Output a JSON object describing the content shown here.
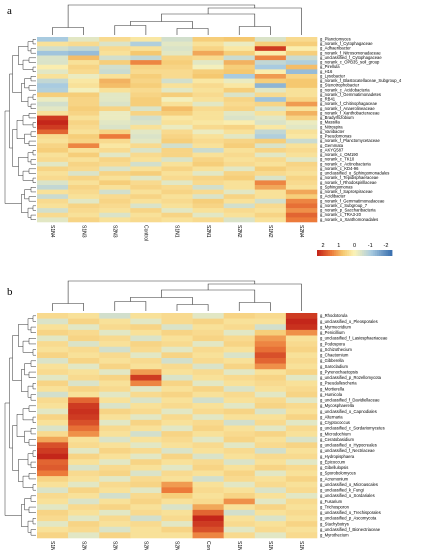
{
  "chart_data": [
    {
      "type": "heatmap",
      "panel_label": "a",
      "columns": [
        "S1N4",
        "S1N3",
        "S2N3",
        "Control",
        "S1N1",
        "S2N1",
        "S2N2",
        "S1N2",
        "S2N4"
      ],
      "rows": [
        "g_Planctomyces",
        "g_norank_f_Cytophagaceae",
        "g_Adhaeribacter",
        "g_norank_f_Nitrosomonadaceae",
        "g_unclassified_f_Cytophagaceae",
        "g_norank_c_OPB35_soil_group",
        "g_Pirellula",
        "g_H16",
        "g_Lysobacter",
        "g_norank_f_Blastocatellaceae_Subgroup_4",
        "g_Stenotrophobacter",
        "g_norank_c_Acidobacteria",
        "g_norank_f_Gemmatimonadetes",
        "g_RB41",
        "g_norank_f_Chitinophagaceae",
        "g_norank_f_Anaerolineaceae",
        "g_norank_f_Xanthobacteraceae",
        "g_Bradyrhizobium",
        "g_Massilia",
        "g_Nitrospira",
        "g_Variibacter",
        "g_Pseudomonas",
        "g_norank_f_Planctomycetaceae",
        "g_Gemmata",
        "g_AKYG587",
        "g_norank_c_OM190",
        "g_norank_c_TK10",
        "g_norank_c_Actinobacteria",
        "g_norank_c_KD4-96",
        "g_unclassified_o_Sphingomonadales",
        "g_norank_f_Tepidisphaeraceae",
        "g_norank_f_Rhodospirillaceae",
        "g_Sphingomonas",
        "g_norank_f_Saprospiraceae",
        "g_Acidibacter",
        "g_norank_f_Gemmatimonadaceae",
        "g_norank_c_Subgroup_7",
        "g_norank_p_Saccharibacteria",
        "g_norank_c_TRA3-20",
        "g_norank_o_Xanthomonadales"
      ],
      "values": [
        [
          -1.0,
          -0.3,
          0.4,
          0.2,
          -0.5,
          0.6,
          0.7,
          -0.4,
          0.4
        ],
        [
          0.3,
          0.4,
          -0.4,
          -0.9,
          -0.3,
          0.3,
          -0.2,
          0.6,
          0.6
        ],
        [
          -0.5,
          -0.7,
          0.4,
          0.3,
          -0.4,
          0.5,
          0.2,
          2.0,
          0.1
        ],
        [
          -1.1,
          -1.2,
          0.3,
          0.7,
          -0.3,
          1.0,
          0.6,
          0.1,
          0.6
        ],
        [
          -0.4,
          0.8,
          -0.5,
          -0.7,
          0.5,
          0.4,
          -0.6,
          1.3,
          -0.6
        ],
        [
          -0.4,
          0.3,
          0.6,
          1.3,
          0.6,
          -0.3,
          0.9,
          -0.7,
          -0.9
        ],
        [
          0.1,
          0.5,
          -0.5,
          0.5,
          0.5,
          -0.1,
          0.6,
          -1.0,
          0.8
        ],
        [
          -0.3,
          0.4,
          -0.6,
          0.4,
          0.4,
          0.6,
          0.7,
          0.1,
          -1.2
        ],
        [
          0.3,
          -0.2,
          0.3,
          0.6,
          0.4,
          0.7,
          -1.0,
          1.1,
          0.5
        ],
        [
          -0.7,
          0.2,
          0.9,
          0.5,
          -0.5,
          0.2,
          -0.2,
          0.6,
          0.7
        ],
        [
          -1.0,
          0.3,
          0.8,
          0.6,
          0.3,
          0.4,
          0.2,
          -1.3,
          0.7
        ],
        [
          -0.9,
          -0.1,
          0.3,
          0.4,
          -0.3,
          0.3,
          0.6,
          -0.3,
          0.3
        ],
        [
          0.6,
          0.6,
          -0.3,
          0.5,
          0.6,
          0.4,
          -0.4,
          0.4,
          0.3
        ],
        [
          -0.2,
          0.5,
          -0.3,
          0.6,
          -0.1,
          0.3,
          0.5,
          -1.1,
          0.5
        ],
        [
          -0.5,
          0.5,
          -0.4,
          0.6,
          0.3,
          -0.3,
          0.4,
          0.5,
          1.1
        ],
        [
          -0.3,
          0.6,
          0.5,
          -0.4,
          0.8,
          0.4,
          0.5,
          -0.4,
          0.3
        ],
        [
          0.3,
          0.5,
          -0.2,
          0.5,
          0.6,
          0.3,
          -0.3,
          0.3,
          0.9
        ],
        [
          2.0,
          0.3,
          -0.2,
          -0.5,
          0.2,
          0.3,
          -0.4,
          -0.3,
          0.5
        ],
        [
          2.2,
          0.5,
          -0.3,
          -0.4,
          0.3,
          0.2,
          0.1,
          -0.4,
          -0.2
        ],
        [
          2.0,
          0.4,
          -0.4,
          0.3,
          -0.2,
          0.4,
          0.5,
          0.2,
          -0.3
        ],
        [
          1.6,
          0.3,
          0.5,
          -0.3,
          0.4,
          -0.2,
          0.3,
          -0.7,
          0.3
        ],
        [
          0.4,
          0.6,
          1.4,
          -0.4,
          0.5,
          0.3,
          -0.3,
          -0.9,
          0.2
        ],
        [
          0.3,
          0.5,
          0.4,
          -0.3,
          0.6,
          0.4,
          0.5,
          0.6,
          -0.6
        ],
        [
          0.5,
          1.3,
          0.2,
          0.4,
          -0.5,
          0.3,
          0.6,
          -0.4,
          0.3
        ],
        [
          0.6,
          0.3,
          0.4,
          -0.4,
          0.5,
          -0.6,
          0.3,
          0.5,
          0.4
        ],
        [
          0.3,
          0.6,
          -0.3,
          0.4,
          0.5,
          0.3,
          0.4,
          -0.3,
          0.3
        ],
        [
          0.4,
          0.3,
          0.5,
          0.3,
          -0.4,
          0.5,
          0.3,
          0.4,
          -0.3
        ],
        [
          -0.3,
          0.5,
          0.4,
          -0.5,
          0.3,
          0.6,
          0.4,
          0.3,
          0.5
        ],
        [
          0.5,
          0.4,
          -0.4,
          0.3,
          0.5,
          0.3,
          -0.3,
          0.6,
          0.4
        ],
        [
          0.3,
          -0.4,
          0.5,
          0.6,
          0.3,
          -0.3,
          0.5,
          0.4,
          0.3
        ],
        [
          0.4,
          0.5,
          0.3,
          -0.3,
          0.4,
          0.5,
          0.6,
          -0.4,
          0.5
        ],
        [
          -0.4,
          0.3,
          0.6,
          0.4,
          -0.3,
          0.4,
          0.3,
          1.3,
          0.4
        ],
        [
          -0.7,
          0.5,
          0.3,
          0.5,
          0.4,
          -0.5,
          0.3,
          1.0,
          0.3
        ],
        [
          0.3,
          0.4,
          -0.5,
          0.3,
          0.5,
          0.4,
          -0.3,
          0.3,
          1.0
        ],
        [
          -0.6,
          0.3,
          0.4,
          0.5,
          0.3,
          -0.4,
          0.5,
          0.3,
          0.6
        ],
        [
          0.4,
          -0.3,
          0.5,
          0.3,
          0.4,
          0.6,
          0.3,
          -0.5,
          1.3
        ],
        [
          0.3,
          0.5,
          0.4,
          -0.4,
          0.3,
          0.5,
          -0.5,
          0.4,
          1.5
        ],
        [
          -0.5,
          0.4,
          0.3,
          0.5,
          -0.3,
          0.3,
          0.4,
          0.3,
          1.2
        ],
        [
          0.4,
          0.3,
          -0.4,
          0.3,
          0.5,
          -0.3,
          0.3,
          0.5,
          1.6
        ],
        [
          -0.3,
          0.5,
          0.3,
          0.4,
          0.3,
          0.4,
          -0.4,
          0.3,
          1.4
        ]
      ],
      "legend": {
        "ticks": [
          2,
          1,
          0,
          -1,
          -2
        ],
        "colors": [
          "#c8401c",
          "#f0a050",
          "#fbf3b0",
          "#b0cfe0",
          "#4a7fb7"
        ]
      }
    },
    {
      "type": "heatmap",
      "panel_label": "b",
      "columns": [
        "S1N3",
        "S2N4",
        "S2N3",
        "S2N2",
        "S2N1",
        "Control",
        "S1N1",
        "S1N2",
        "S1N4"
      ],
      "rows": [
        "g_Rhodotorula",
        "g_unclassified_o_Pleosporales",
        "g_Myrmecridium",
        "g_Penicillium",
        "g_unclassified_f_Lasiosphaeriaceae",
        "g_Podospora",
        "g_Schizothecium",
        "g_Chaetomium",
        "g_Gibberella",
        "g_Sarocladium",
        "g_Pyrenochaetopsis",
        "g_unclassified_p_Rozellomycota",
        "g_Pseudallescheria",
        "g_Mortierella",
        "g_Humicola",
        "g_unclassified_f_Davidiellaceae",
        "g_Mycosphaerella",
        "g_unclassified_o_Capnodiales",
        "g_Alternaria",
        "g_Cryptococcus",
        "g_unclassified_c_Sordariomycetes",
        "g_Microdochium",
        "g_Ceratobasidium",
        "g_unclassified_o_Hypocreales",
        "g_unclassified_f_Nectriaceae",
        "g_Hydropisphaera",
        "g_Epicoccum",
        "g_Gibellulopsis",
        "g_Sporobolomyces",
        "g_Acremonium",
        "g_unclassified_o_Microascales",
        "g_unclassified_k_Fungi",
        "g_unclassified_o_Sordariales",
        "g_Fusarium",
        "g_Trichosporon",
        "g_unclassified_o_Trechisporales",
        "g_unclassified_p_Ascomycota",
        "g_Stachybotrys",
        "g_unclassified_f_Bionectriaceae",
        "g_Myrothecium"
      ],
      "values": [
        [
          0.4,
          0.3,
          -0.5,
          0.3,
          0.4,
          -0.3,
          0.5,
          0.4,
          2.0
        ],
        [
          -0.4,
          0.5,
          0.3,
          -0.3,
          0.4,
          0.5,
          0.3,
          0.3,
          2.2
        ],
        [
          0.3,
          -0.3,
          0.4,
          0.5,
          -0.4,
          0.3,
          0.4,
          -0.5,
          2.1
        ],
        [
          0.5,
          0.4,
          -0.3,
          0.3,
          0.5,
          0.4,
          -0.3,
          0.6,
          1.2
        ],
        [
          -0.3,
          0.5,
          0.4,
          -0.4,
          0.3,
          0.5,
          0.4,
          1.1,
          0.3
        ],
        [
          0.4,
          -0.4,
          0.3,
          0.5,
          0.4,
          -0.3,
          0.5,
          1.3,
          0.4
        ],
        [
          0.3,
          0.4,
          -0.5,
          0.4,
          -0.3,
          0.4,
          0.3,
          1.5,
          0.5
        ],
        [
          0.5,
          0.3,
          0.4,
          -0.3,
          0.5,
          0.3,
          -0.4,
          1.8,
          0.3
        ],
        [
          -0.4,
          0.5,
          0.3,
          0.4,
          -0.5,
          0.4,
          0.3,
          1.6,
          0.4
        ],
        [
          0.3,
          -0.3,
          0.5,
          0.3,
          0.4,
          -0.4,
          0.5,
          1.2,
          0.3
        ],
        [
          0.4,
          0.3,
          -0.3,
          1.1,
          0.3,
          0.4,
          -0.3,
          0.3,
          0.5
        ],
        [
          -0.3,
          0.4,
          0.5,
          2.0,
          -0.4,
          0.3,
          0.4,
          0.5,
          -0.3
        ],
        [
          0.5,
          -0.4,
          0.3,
          1.3,
          0.5,
          -0.3,
          0.3,
          0.4,
          0.3
        ],
        [
          0.3,
          0.5,
          0.4,
          -0.3,
          0.3,
          0.5,
          -0.4,
          0.3,
          0.4
        ],
        [
          -0.5,
          0.3,
          -0.3,
          0.4,
          0.5,
          0.3,
          0.4,
          -0.3,
          0.5
        ],
        [
          0.4,
          1.6,
          0.3,
          -0.4,
          0.3,
          -0.5,
          0.3,
          0.4,
          -0.3
        ],
        [
          0.3,
          2.0,
          -0.4,
          0.3,
          0.4,
          0.3,
          -0.3,
          0.5,
          0.4
        ],
        [
          -0.3,
          2.1,
          0.5,
          0.4,
          -0.3,
          0.4,
          0.5,
          -0.4,
          0.3
        ],
        [
          0.5,
          2.0,
          0.3,
          -0.3,
          0.4,
          -0.3,
          0.3,
          0.3,
          0.5
        ],
        [
          0.3,
          1.8,
          -0.3,
          0.5,
          0.3,
          0.4,
          -0.5,
          0.4,
          -0.3
        ],
        [
          -0.4,
          1.5,
          0.4,
          0.3,
          -0.3,
          0.5,
          0.3,
          -0.3,
          0.4
        ],
        [
          0.4,
          1.2,
          0.3,
          -0.5,
          0.5,
          0.3,
          0.4,
          0.5,
          0.3
        ],
        [
          1.0,
          0.3,
          -0.4,
          0.3,
          0.4,
          -0.3,
          0.5,
          0.3,
          -0.4
        ],
        [
          1.8,
          0.4,
          0.3,
          -0.3,
          0.3,
          0.4,
          -0.3,
          0.4,
          0.5
        ],
        [
          2.0,
          -0.3,
          0.5,
          0.4,
          -0.4,
          0.3,
          0.4,
          -0.5,
          0.3
        ],
        [
          2.2,
          0.5,
          0.3,
          -0.3,
          0.5,
          -0.4,
          0.3,
          0.4,
          0.4
        ],
        [
          1.6,
          0.3,
          -0.3,
          0.5,
          0.3,
          0.4,
          -0.4,
          0.3,
          -0.3
        ],
        [
          1.7,
          -0.4,
          0.4,
          0.3,
          -0.3,
          0.5,
          0.3,
          0.5,
          0.4
        ],
        [
          1.4,
          0.4,
          0.5,
          -0.4,
          0.4,
          0.3,
          0.5,
          -0.3,
          0.3
        ],
        [
          0.5,
          0.3,
          -0.3,
          0.4,
          0.3,
          -0.5,
          0.4,
          0.3,
          0.5
        ],
        [
          0.3,
          -0.3,
          0.4,
          0.5,
          1.1,
          0.3,
          -0.3,
          0.4,
          0.3
        ],
        [
          -0.4,
          0.5,
          0.3,
          -0.3,
          1.4,
          0.4,
          0.3,
          -0.4,
          0.4
        ],
        [
          0.4,
          0.3,
          -0.5,
          0.4,
          0.6,
          0.3,
          0.5,
          0.3,
          -0.3
        ],
        [
          0.3,
          -0.4,
          0.3,
          0.5,
          0.3,
          0.4,
          1.2,
          -0.3,
          0.4
        ],
        [
          -0.3,
          0.4,
          0.5,
          0.3,
          -0.4,
          1.0,
          0.3,
          0.5,
          0.3
        ],
        [
          0.5,
          0.3,
          -0.3,
          0.4,
          0.3,
          1.6,
          -0.5,
          0.3,
          0.4
        ],
        [
          0.4,
          -0.3,
          0.4,
          -0.5,
          0.4,
          2.2,
          0.3,
          -0.4,
          0.3
        ],
        [
          -0.3,
          0.5,
          0.3,
          0.4,
          -0.3,
          2.0,
          0.4,
          0.3,
          0.5
        ],
        [
          0.3,
          0.4,
          -0.4,
          0.3,
          0.5,
          1.8,
          -0.3,
          0.4,
          0.3
        ],
        [
          0.5,
          -0.3,
          0.5,
          0.3,
          0.3,
          1.3,
          0.4,
          -0.3,
          0.4
        ]
      ]
    }
  ]
}
